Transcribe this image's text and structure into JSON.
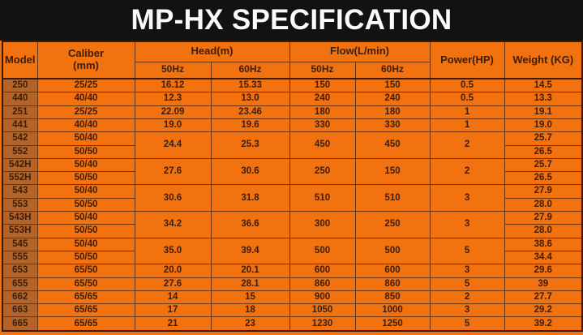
{
  "title_bar": {
    "title": "MP-HX SPECIFICATION"
  },
  "colors": {
    "title_bar_bg": "#121212",
    "title_text": "#fafafa",
    "body_orange": "#f1720e",
    "model_column_bg": "#b2642b",
    "grid_line": "#6b3204",
    "outer_line": "#3a1b01",
    "cell_text": "#3e1d01"
  },
  "table": {
    "headers": {
      "model": "Model",
      "caliber": "Caliber\n(mm)",
      "head": "Head(m)",
      "flow": "Flow(L/min)",
      "hz50": "50Hz",
      "hz60": "60Hz",
      "power": "Power(HP)",
      "weight": "Weight (KG)"
    },
    "rows": [
      {
        "model": "250",
        "caliber": "25/25",
        "weight": "14.5",
        "mid": {
          "rowspan": 1,
          "head50": "16.12",
          "head60": "15.33",
          "flow50": "150",
          "flow60": "150",
          "power": "0.5"
        }
      },
      {
        "model": "440",
        "caliber": "40/40",
        "weight": "13.3",
        "mid": {
          "rowspan": 1,
          "head50": "12.3",
          "head60": "13.0",
          "flow50": "240",
          "flow60": "240",
          "power": "0.5"
        }
      },
      {
        "model": "251",
        "caliber": "25/25",
        "weight": "19.1",
        "mid": {
          "rowspan": 1,
          "head50": "22.09",
          "head60": "23.46",
          "flow50": "180",
          "flow60": "180",
          "power": "1"
        }
      },
      {
        "model": "441",
        "caliber": "40/40",
        "weight": "19.0",
        "mid": {
          "rowspan": 1,
          "head50": "19.0",
          "head60": "19.6",
          "flow50": "330",
          "flow60": "330",
          "power": "1"
        }
      },
      {
        "model": "542",
        "caliber": "50/40",
        "weight": "25.7",
        "mid": {
          "rowspan": 2,
          "head50": "24.4",
          "head60": "25.3",
          "flow50": "450",
          "flow60": "450",
          "power": "2"
        }
      },
      {
        "model": "552",
        "caliber": "50/50",
        "weight": "26.5"
      },
      {
        "model": "542H",
        "caliber": "50/40",
        "weight": "25.7",
        "mid": {
          "rowspan": 2,
          "head50": "27.6",
          "head60": "30.6",
          "flow50": "250",
          "flow60": "150",
          "power": "2"
        }
      },
      {
        "model": "552H",
        "caliber": "50/50",
        "weight": "26.5"
      },
      {
        "model": "543",
        "caliber": "50/40",
        "weight": "27.9",
        "mid": {
          "rowspan": 2,
          "head50": "30.6",
          "head60": "31.8",
          "flow50": "510",
          "flow60": "510",
          "power": "3"
        }
      },
      {
        "model": "553",
        "caliber": "50/50",
        "weight": "28.0"
      },
      {
        "model": "543H",
        "caliber": "50/40",
        "weight": "27.9",
        "mid": {
          "rowspan": 2,
          "head50": "34.2",
          "head60": "36.6",
          "flow50": "300",
          "flow60": "250",
          "power": "3"
        }
      },
      {
        "model": "553H",
        "caliber": "50/50",
        "weight": "28.0"
      },
      {
        "model": "545",
        "caliber": "50/40",
        "weight": "38.6",
        "mid": {
          "rowspan": 2,
          "head50": "35.0",
          "head60": "39.4",
          "flow50": "500",
          "flow60": "500",
          "power": "5"
        }
      },
      {
        "model": "555",
        "caliber": "50/50",
        "weight": "34.4"
      },
      {
        "model": "653",
        "caliber": "65/50",
        "weight": "29.6",
        "mid": {
          "rowspan": 1,
          "head50": "20.0",
          "head60": "20.1",
          "flow50": "600",
          "flow60": "600",
          "power": "3"
        }
      },
      {
        "model": "655",
        "caliber": "65/50",
        "weight": "39",
        "mid": {
          "rowspan": 1,
          "head50": "27.6",
          "head60": "28.1",
          "flow50": "860",
          "flow60": "860",
          "power": "5"
        }
      },
      {
        "model": "662",
        "caliber": "65/65",
        "weight": "27.7",
        "mid": {
          "rowspan": 1,
          "head50": "14",
          "head60": "15",
          "flow50": "900",
          "flow60": "850",
          "power": "2"
        }
      },
      {
        "model": "663",
        "caliber": "65/65",
        "weight": "29.2",
        "mid": {
          "rowspan": 1,
          "head50": "17",
          "head60": "18",
          "flow50": "1050",
          "flow60": "1000",
          "power": "3"
        }
      },
      {
        "model": "665",
        "caliber": "65/65",
        "weight": "39.2",
        "mid": {
          "rowspan": 1,
          "head50": "21",
          "head60": "23",
          "flow50": "1230",
          "flow60": "1250",
          "power": "5"
        }
      }
    ]
  }
}
